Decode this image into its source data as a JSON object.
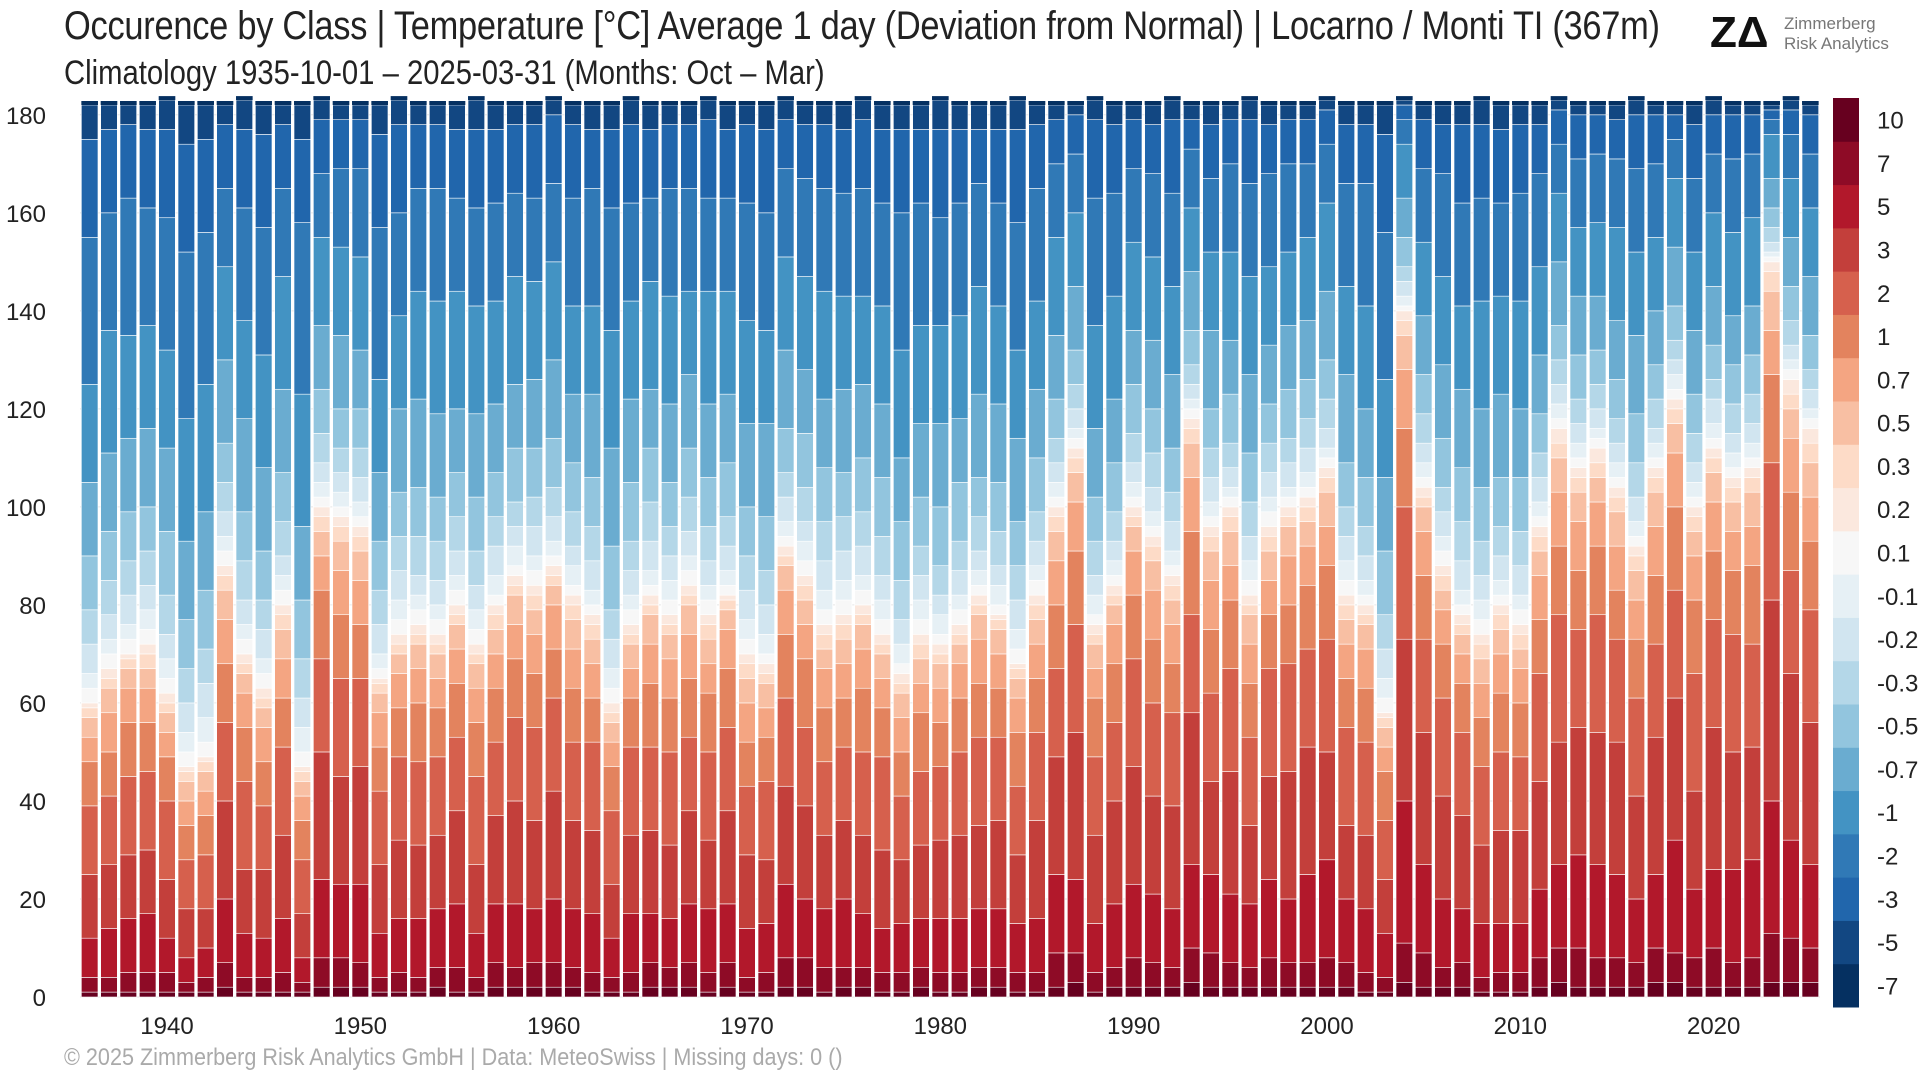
{
  "header": {
    "title": "Occurence by Class | Temperature [°C] Average 1 day (Deviation from Normal) | Locarno / Monti TI (367m)",
    "subtitle": "Climatology 1935-10-01 – 2025-03-31 (Months: Oct – Mar)"
  },
  "logo": {
    "mark": "ZΔ",
    "line1": "Zimmerberg",
    "line2": "Risk Analytics"
  },
  "footer": {
    "text": "© 2025 Zimmerberg Risk Analytics GmbH | Data: MeteoSwiss | Missing days: 0 ()"
  },
  "colors": {
    "classes": [
      "#053061",
      "#124782",
      "#2166ac",
      "#3079b6",
      "#4393c3",
      "#6aacd0",
      "#92c5de",
      "#b4d7e8",
      "#d1e5f0",
      "#e6f0f5",
      "#f7f7f7",
      "#fbe8de",
      "#fddbc7",
      "#f8bfa3",
      "#f4a582",
      "#e3835e",
      "#d6604d",
      "#c33f3b",
      "#b2182b",
      "#8e0b26",
      "#67001f"
    ]
  },
  "chart_data": {
    "type": "bar",
    "stacked": true,
    "x_start": 1936,
    "x_end": 2025,
    "xticks": [
      1940,
      1950,
      1960,
      1970,
      1980,
      1990,
      2000,
      2010,
      2020
    ],
    "ylim": [
      0,
      182
    ],
    "yticks": [
      0,
      20,
      40,
      60,
      80,
      100,
      120,
      140,
      160,
      180
    ],
    "legend_title": "",
    "legend_labels": [
      "-7",
      "-5",
      "-3",
      "-2",
      "-1",
      "-0.7",
      "-0.5",
      "-0.3",
      "-0.2",
      "-0.1",
      "0.1",
      "0.2",
      "0.3",
      "0.5",
      "0.7",
      "1",
      "2",
      "3",
      "5",
      "7",
      "10"
    ],
    "season_total_days": [
      182,
      182,
      182,
      182,
      183,
      182,
      182,
      182,
      183,
      182,
      182,
      182,
      183,
      182,
      182,
      182,
      183,
      182,
      182,
      182,
      183,
      182,
      182,
      182,
      183,
      182,
      182,
      182,
      183,
      182,
      182,
      182,
      183,
      182,
      182,
      182,
      183,
      182,
      182,
      182,
      183,
      182,
      182,
      182,
      183,
      182,
      182,
      182,
      183,
      182,
      182,
      182,
      183,
      182,
      182,
      182,
      183,
      182,
      182,
      182,
      183,
      182,
      182,
      182,
      183,
      182,
      182,
      182,
      183,
      182,
      182,
      182,
      183,
      182,
      182,
      182,
      183,
      182,
      182,
      182,
      183,
      182,
      182,
      182,
      183,
      182,
      182,
      182,
      183,
      182
    ],
    "warm_days_above_normal": [
      60,
      67,
      70,
      72,
      62,
      47,
      49,
      88,
      70,
      63,
      80,
      47,
      100,
      98,
      96,
      65,
      74,
      76,
      74,
      80,
      72,
      80,
      86,
      84,
      88,
      82,
      78,
      60,
      76,
      82,
      78,
      84,
      78,
      82,
      70,
      68,
      92,
      86,
      76,
      78,
      80,
      74,
      66,
      74,
      72,
      76,
      82,
      78,
      68,
      82,
      100,
      112,
      76,
      84,
      100,
      94,
      86,
      118,
      96,
      100,
      82,
      96,
      100,
      102,
      108,
      82,
      80,
      58,
      140,
      104,
      88,
      78,
      74,
      80,
      76,
      96,
      116,
      108,
      112,
      104,
      92,
      108,
      122,
      100,
      112,
      106,
      108,
      150,
      126,
      116
    ],
    "notes": "Each bar is one cold season (Oct–Mar); stacked segments show days per deviation class, red = warmer than normal, blue = colder."
  }
}
